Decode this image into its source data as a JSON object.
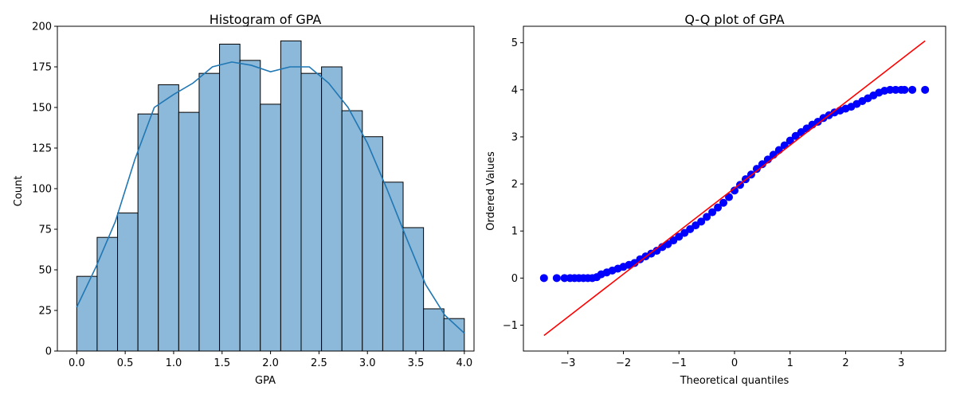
{
  "chart_data": [
    {
      "type": "bar",
      "title": "Histogram of GPA",
      "xlabel": "GPA",
      "ylabel": "Count",
      "xlim": [
        -0.2,
        4.1
      ],
      "ylim": [
        0,
        200
      ],
      "xticks": [
        0.0,
        0.5,
        1.0,
        1.5,
        2.0,
        2.5,
        3.0,
        3.5,
        4.0
      ],
      "xtick_labels": [
        "0.0",
        "0.5",
        "1.0",
        "1.5",
        "2.0",
        "2.5",
        "3.0",
        "3.5",
        "4.0"
      ],
      "yticks": [
        0,
        25,
        50,
        75,
        100,
        125,
        150,
        175,
        200
      ],
      "ytick_labels": [
        "0",
        "25",
        "50",
        "75",
        "100",
        "125",
        "150",
        "175",
        "200"
      ],
      "bin_edges": [
        0.0,
        0.2105,
        0.4211,
        0.6316,
        0.8421,
        1.0526,
        1.2632,
        1.4737,
        1.6842,
        1.8947,
        2.1053,
        2.3158,
        2.5263,
        2.7368,
        2.9474,
        3.1579,
        3.3684,
        3.5789,
        3.7895,
        4.0
      ],
      "values": [
        46,
        70,
        85,
        146,
        164,
        147,
        171,
        189,
        179,
        152,
        191,
        171,
        175,
        148,
        132,
        104,
        76,
        26,
        20
      ],
      "kde": {
        "x": [
          0.0,
          0.2,
          0.4,
          0.6,
          0.8,
          1.0,
          1.2,
          1.4,
          1.6,
          1.8,
          2.0,
          2.2,
          2.4,
          2.6,
          2.8,
          3.0,
          3.2,
          3.4,
          3.6,
          3.8,
          4.0
        ],
        "y": [
          27,
          52,
          80,
          118,
          150,
          158,
          165,
          175,
          178,
          176,
          172,
          175,
          175,
          165,
          150,
          128,
          100,
          70,
          41,
          22,
          11
        ]
      },
      "colors": {
        "bar": "#8cb8d9",
        "edge": "#000000",
        "kde": "#1f77b4"
      }
    },
    {
      "type": "scatter",
      "title": "Q-Q plot of GPA",
      "xlabel": "Theoretical quantiles",
      "ylabel": "Ordered Values",
      "xlim": [
        -3.8,
        3.8
      ],
      "ylim": [
        -1.55,
        5.35
      ],
      "xticks": [
        -3,
        -2,
        -1,
        0,
        1,
        2,
        3
      ],
      "xtick_labels": [
        "−3",
        "−2",
        "−1",
        "0",
        "1",
        "2",
        "3"
      ],
      "yticks": [
        -1,
        0,
        1,
        2,
        3,
        4,
        5
      ],
      "ytick_labels": [
        "−1",
        "0",
        "1",
        "2",
        "3",
        "4",
        "5"
      ],
      "points": [
        [
          -3.43,
          0.0
        ],
        [
          -3.2,
          0.0
        ],
        [
          -3.06,
          0.0
        ],
        [
          -2.96,
          0.0
        ],
        [
          -2.88,
          0.0
        ],
        [
          -2.8,
          0.0
        ],
        [
          -2.72,
          0.0
        ],
        [
          -2.64,
          0.0
        ],
        [
          -2.56,
          0.0
        ],
        [
          -2.48,
          0.02
        ],
        [
          -2.4,
          0.08
        ],
        [
          -2.3,
          0.12
        ],
        [
          -2.2,
          0.16
        ],
        [
          -2.1,
          0.2
        ],
        [
          -2.0,
          0.24
        ],
        [
          -1.9,
          0.28
        ],
        [
          -1.8,
          0.32
        ],
        [
          -1.7,
          0.4
        ],
        [
          -1.6,
          0.46
        ],
        [
          -1.5,
          0.52
        ],
        [
          -1.4,
          0.58
        ],
        [
          -1.3,
          0.66
        ],
        [
          -1.2,
          0.72
        ],
        [
          -1.1,
          0.8
        ],
        [
          -1.0,
          0.88
        ],
        [
          -0.9,
          0.96
        ],
        [
          -0.8,
          1.04
        ],
        [
          -0.7,
          1.12
        ],
        [
          -0.6,
          1.2
        ],
        [
          -0.5,
          1.3
        ],
        [
          -0.4,
          1.4
        ],
        [
          -0.3,
          1.5
        ],
        [
          -0.2,
          1.6
        ],
        [
          -0.1,
          1.72
        ],
        [
          0.0,
          1.86
        ],
        [
          0.1,
          1.98
        ],
        [
          0.2,
          2.1
        ],
        [
          0.3,
          2.2
        ],
        [
          0.4,
          2.32
        ],
        [
          0.5,
          2.42
        ],
        [
          0.6,
          2.52
        ],
        [
          0.7,
          2.62
        ],
        [
          0.8,
          2.72
        ],
        [
          0.9,
          2.82
        ],
        [
          1.0,
          2.92
        ],
        [
          1.1,
          3.02
        ],
        [
          1.2,
          3.1
        ],
        [
          1.3,
          3.18
        ],
        [
          1.4,
          3.26
        ],
        [
          1.5,
          3.32
        ],
        [
          1.6,
          3.4
        ],
        [
          1.7,
          3.46
        ],
        [
          1.8,
          3.52
        ],
        [
          1.9,
          3.56
        ],
        [
          2.0,
          3.6
        ],
        [
          2.1,
          3.64
        ],
        [
          2.2,
          3.7
        ],
        [
          2.3,
          3.76
        ],
        [
          2.4,
          3.82
        ],
        [
          2.5,
          3.88
        ],
        [
          2.6,
          3.94
        ],
        [
          2.7,
          3.98
        ],
        [
          2.8,
          4.0
        ],
        [
          2.9,
          4.0
        ],
        [
          3.0,
          4.0
        ],
        [
          3.06,
          4.0
        ],
        [
          3.2,
          4.0
        ],
        [
          3.43,
          4.0
        ]
      ],
      "fit_line": {
        "x": [
          -3.43,
          3.43
        ],
        "y": [
          -1.22,
          5.04
        ]
      },
      "colors": {
        "points": "#0000ff",
        "line": "#ff0000"
      }
    }
  ]
}
